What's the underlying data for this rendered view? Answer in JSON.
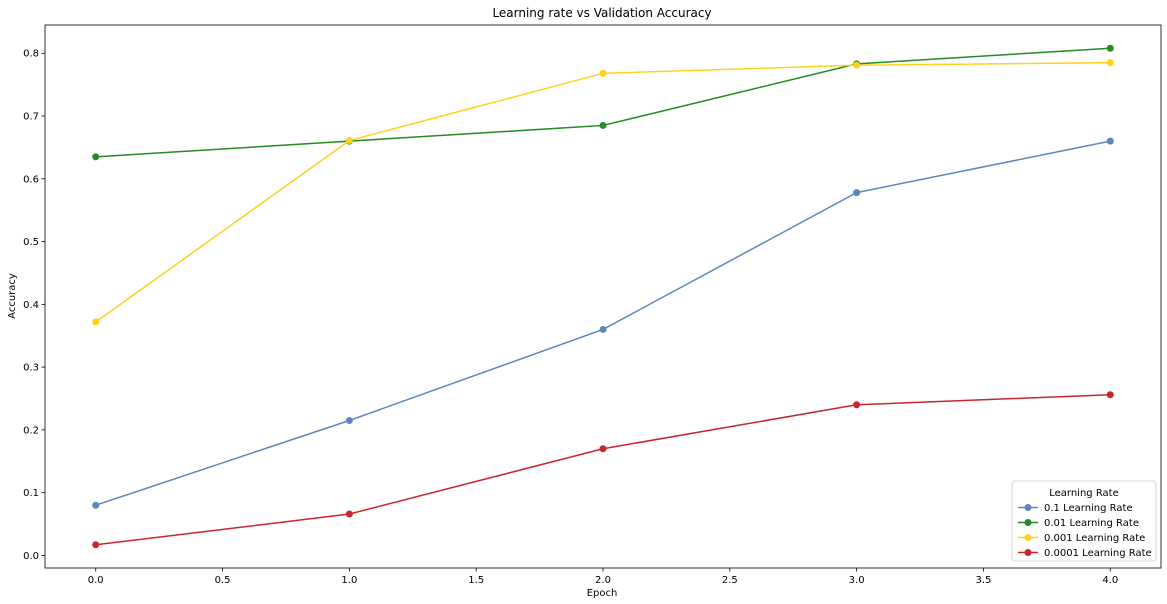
{
  "chart_data": {
    "type": "line",
    "title": "Learning rate vs Validation Accuracy",
    "xlabel": "Epoch",
    "ylabel": "Accuracy",
    "x": [
      0,
      1,
      2,
      3,
      4
    ],
    "xlim": [
      -0.2,
      4.2
    ],
    "ylim": [
      -0.02,
      0.845
    ],
    "xticks": [
      "0.0",
      "0.5",
      "1.0",
      "1.5",
      "2.0",
      "2.5",
      "3.0",
      "3.5",
      "4.0"
    ],
    "xtick_values": [
      0,
      0.5,
      1,
      1.5,
      2,
      2.5,
      3,
      3.5,
      4
    ],
    "yticks": [
      "0.0",
      "0.1",
      "0.2",
      "0.3",
      "0.4",
      "0.5",
      "0.6",
      "0.7",
      "0.8"
    ],
    "ytick_values": [
      0,
      0.1,
      0.2,
      0.3,
      0.4,
      0.5,
      0.6,
      0.7,
      0.8
    ],
    "grid": false,
    "legend": {
      "title": "Learning Rate",
      "placement": "bottom-right"
    },
    "series": [
      {
        "name": "0.1 Learning Rate",
        "color": "#5b87bf",
        "values": [
          0.08,
          0.215,
          0.36,
          0.578,
          0.66
        ]
      },
      {
        "name": "0.01 Learning Rate",
        "color": "#228b22",
        "values": [
          0.635,
          0.66,
          0.685,
          0.783,
          0.808
        ]
      },
      {
        "name": "0.001 Learning Rate",
        "color": "#ffd11a",
        "values": [
          0.372,
          0.661,
          0.768,
          0.781,
          0.785
        ]
      },
      {
        "name": "0.0001 Learning Rate",
        "color": "#c8262a",
        "values": [
          0.017,
          0.066,
          0.17,
          0.24,
          0.256
        ]
      }
    ]
  }
}
